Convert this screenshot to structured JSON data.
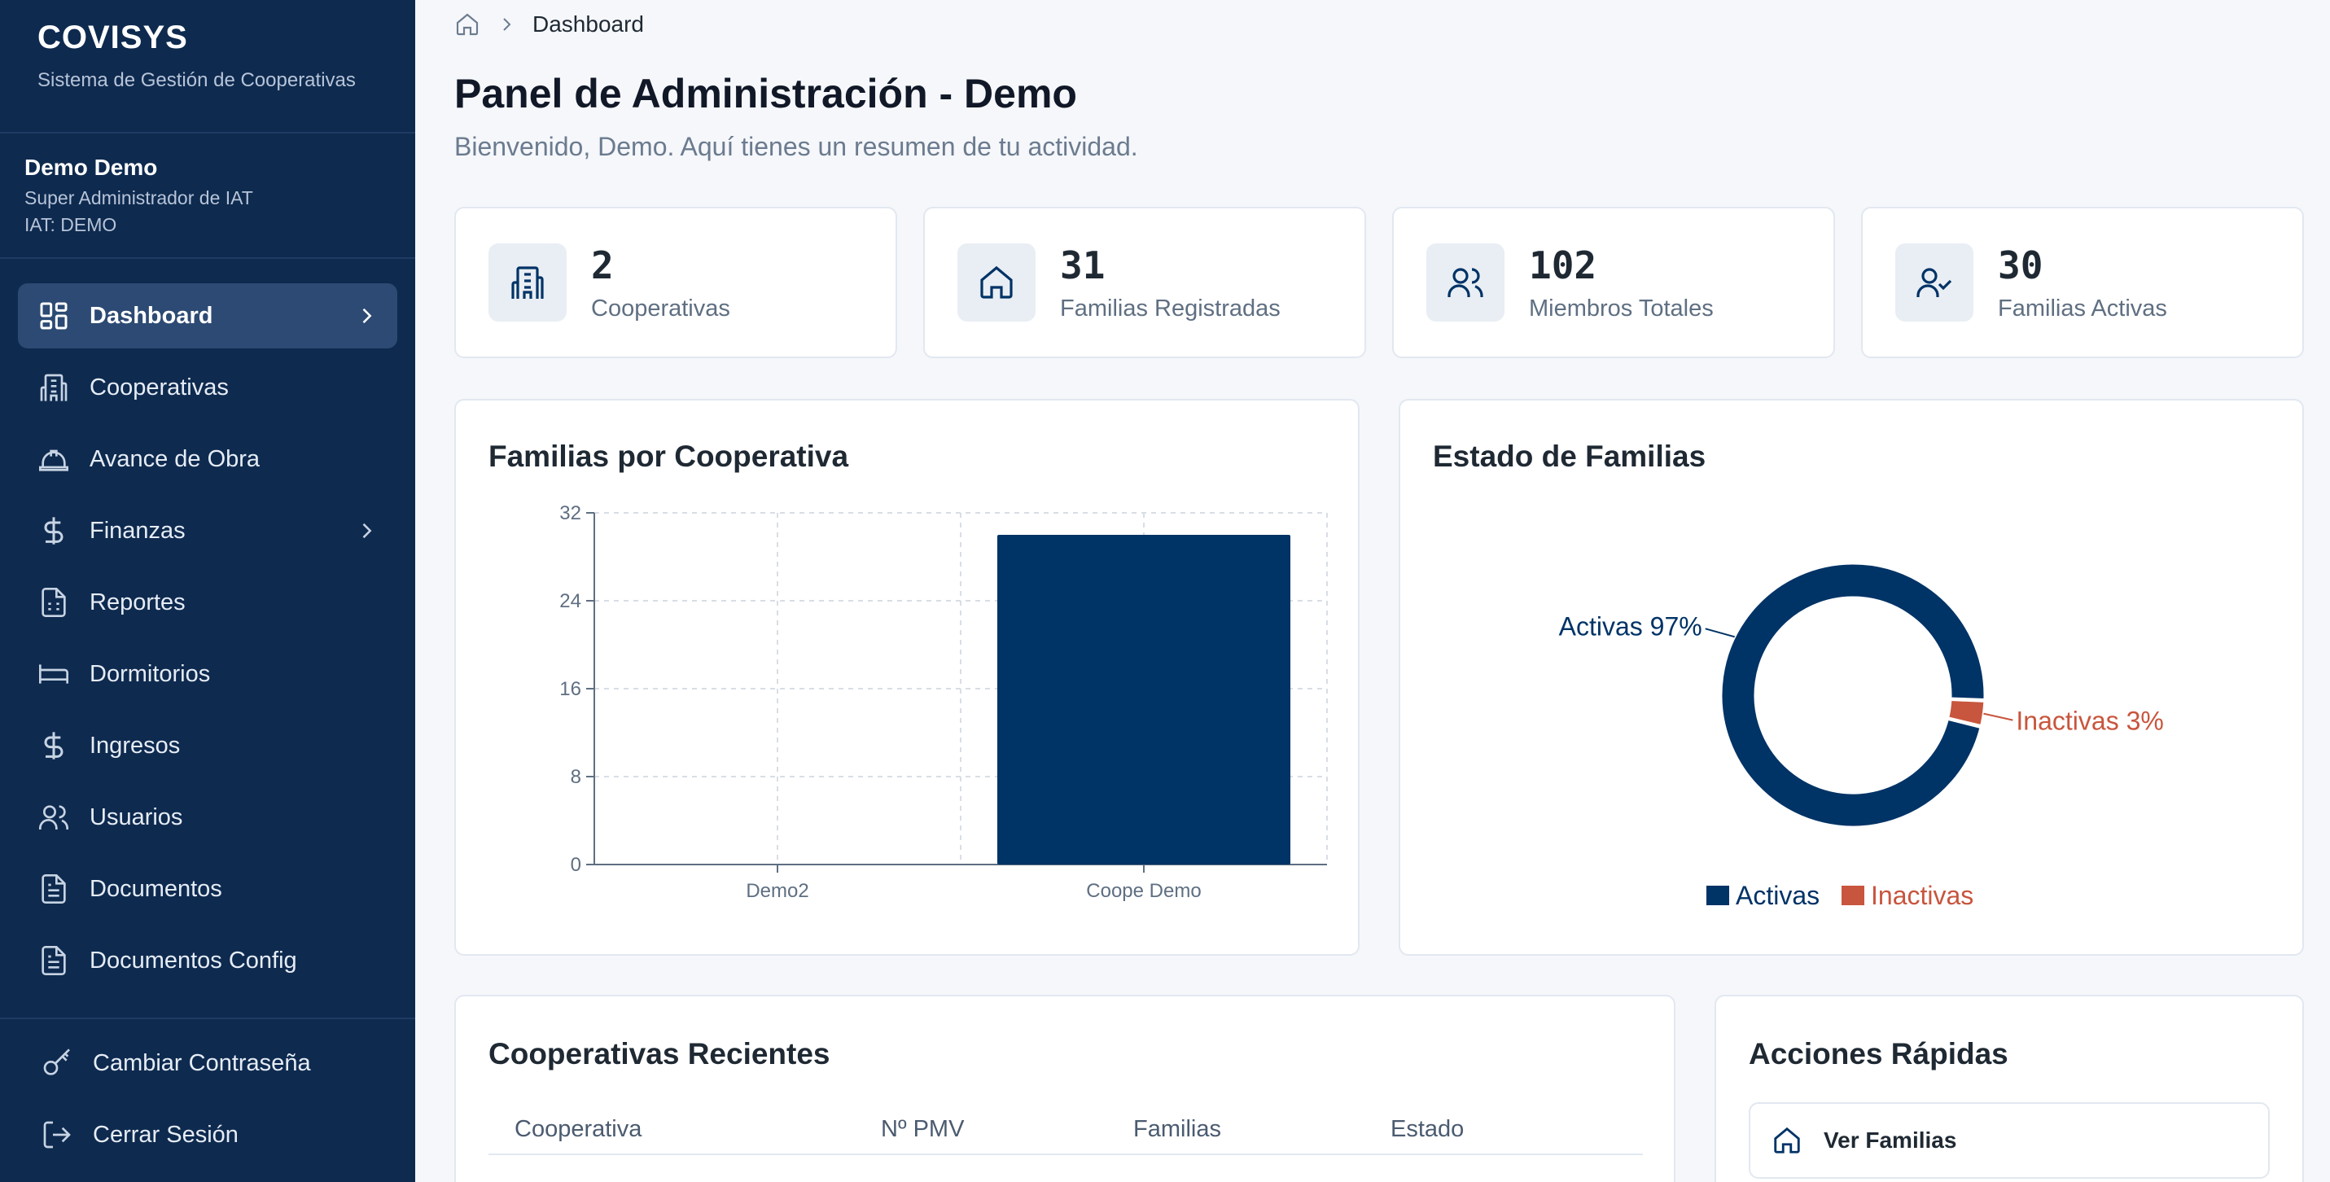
{
  "brand": {
    "title": "COVISYS",
    "subtitle": "Sistema de Gestión de Cooperativas"
  },
  "user": {
    "name": "Demo Demo",
    "role": "Super Administrador de IAT",
    "iat": "IAT: DEMO"
  },
  "nav": {
    "items": [
      {
        "label": "Dashboard",
        "icon": "dashboard-icon",
        "active": true
      },
      {
        "label": "Cooperativas",
        "icon": "building-icon"
      },
      {
        "label": "Avance de Obra",
        "icon": "hardhat-icon"
      },
      {
        "label": "Finanzas",
        "icon": "dollar-icon"
      },
      {
        "label": "Reportes",
        "icon": "report-icon"
      },
      {
        "label": "Dormitorios",
        "icon": "bed-icon"
      },
      {
        "label": "Ingresos",
        "icon": "dollar-icon"
      },
      {
        "label": "Usuarios",
        "icon": "users-icon"
      },
      {
        "label": "Documentos",
        "icon": "document-icon"
      },
      {
        "label": "Documentos Config",
        "icon": "document-icon"
      }
    ],
    "bottom": [
      {
        "label": "Cambiar Contraseña",
        "icon": "key-icon"
      },
      {
        "label": "Cerrar Sesión",
        "icon": "logout-icon"
      }
    ]
  },
  "breadcrumb": {
    "current": "Dashboard"
  },
  "header": {
    "title": "Panel de Administración - Demo",
    "subtitle": "Bienvenido, Demo. Aquí tienes un resumen de tu actividad."
  },
  "stats": [
    {
      "value": "2",
      "label": "Cooperativas",
      "icon": "building-icon"
    },
    {
      "value": "31",
      "label": "Familias Registradas",
      "icon": "home-icon"
    },
    {
      "value": "102",
      "label": "Miembros Totales",
      "icon": "users-icon"
    },
    {
      "value": "30",
      "label": "Familias Activas",
      "icon": "user-check-icon"
    }
  ],
  "colors": {
    "sidebar": "#0e2a4f",
    "primary": "#003366",
    "danger": "#c8553d"
  },
  "chart_data": [
    {
      "type": "bar",
      "title": "Familias por Cooperativa",
      "categories": [
        "Demo2",
        "Coope Demo"
      ],
      "values": [
        0,
        30
      ],
      "ylim": [
        0,
        32
      ],
      "yticks": [
        0,
        8,
        16,
        24,
        32
      ],
      "grid": true,
      "color": "#003366"
    },
    {
      "type": "pie",
      "title": "Estado de Familias",
      "labels": [
        "Activas",
        "Inactivas"
      ],
      "values": [
        97,
        3
      ],
      "slice_labels": [
        "Activas 97%",
        "Inactivas 3%"
      ],
      "colors": [
        "#003366",
        "#c8553d"
      ],
      "legend": "bottom"
    }
  ],
  "recent": {
    "title": "Cooperativas Recientes",
    "columns": [
      "Cooperativa",
      "Nº PMV",
      "Familias",
      "Estado"
    ]
  },
  "quick": {
    "title": "Acciones Rápidas",
    "items": [
      {
        "label": "Ver Familias",
        "icon": "home-icon"
      }
    ]
  }
}
